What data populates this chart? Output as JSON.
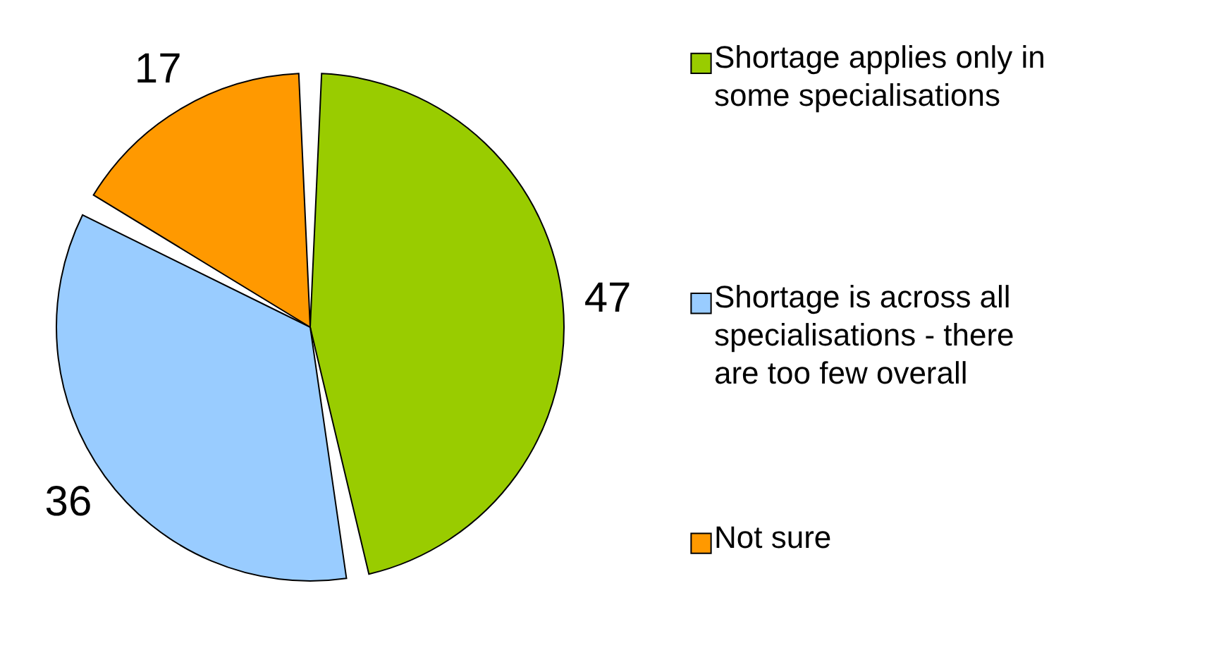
{
  "chart_data": {
    "type": "pie",
    "categories": [
      "Shortage applies only in some specialisations",
      "Shortage is across all specialisations - there are too few overall",
      "Not sure"
    ],
    "values": [
      47,
      36,
      17
    ],
    "colors": [
      "#99cc00",
      "#99ccff",
      "#ff9900"
    ],
    "data_labels": true,
    "legend": "right"
  }
}
